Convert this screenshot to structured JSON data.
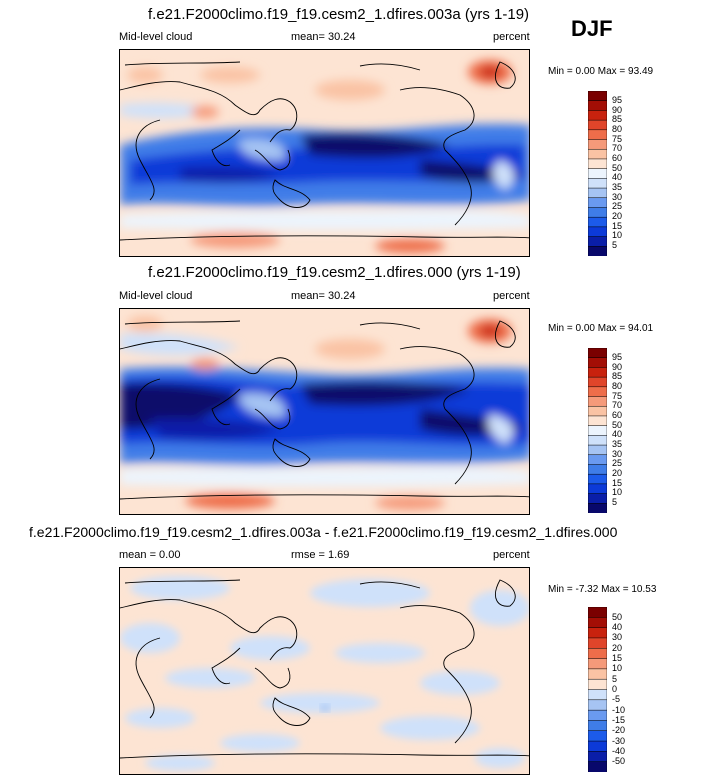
{
  "season": "DJF",
  "colors": {
    "full": [
      "#08086b",
      "#0a1ea8",
      "#0c3ad8",
      "#1c5bea",
      "#3f7de8",
      "#6a9af0",
      "#a6c4f3",
      "#cfe1fa",
      "#ecf4fd",
      "#fde4d3",
      "#fac3a4",
      "#f59a7a",
      "#ee6d4a",
      "#e0452a",
      "#c8220e",
      "#a30e05",
      "#7a0000"
    ],
    "diff": [
      "#08086b",
      "#0a1ea8",
      "#0c3ad8",
      "#1c5bea",
      "#3f7de8",
      "#6a9af0",
      "#a6c4f3",
      "#cfe1fa",
      "#fde4d3",
      "#fac3a4",
      "#f59a7a",
      "#ee6d4a",
      "#e0452a",
      "#c8220e",
      "#a30e05",
      "#7a0000"
    ]
  },
  "panels": [
    {
      "title": "f.e21.F2000climo.f19_f19.cesm2_1.dfires.003a (yrs 1-19)",
      "variable": "Mid-level cloud",
      "stat": "mean=  30.24",
      "units": "percent",
      "minmax": "Min =   0.00 Max =  93.49",
      "ticks": [
        "95",
        "90",
        "85",
        "80",
        "75",
        "70",
        "60",
        "50",
        "40",
        "35",
        "30",
        "25",
        "20",
        "15",
        "10",
        "5"
      ]
    },
    {
      "title": "f.e21.F2000climo.f19_f19.cesm2_1.dfires.000 (yrs 1-19)",
      "variable": "Mid-level cloud",
      "stat": "mean=  30.24",
      "units": "percent",
      "minmax": "Min =   0.00 Max =  94.01",
      "ticks": [
        "95",
        "90",
        "85",
        "80",
        "75",
        "70",
        "60",
        "50",
        "40",
        "35",
        "30",
        "25",
        "20",
        "15",
        "10",
        "5"
      ]
    },
    {
      "title": "f.e21.F2000climo.f19_f19.cesm2_1.dfires.003a - f.e21.F2000climo.f19_f19.cesm2_1.dfires.000",
      "stat_left": "mean =   0.00",
      "stat_mid": "rmse =   1.69",
      "units": "percent",
      "minmax": "Min =  -7.32 Max =  10.53",
      "ticks": [
        "50",
        "40",
        "30",
        "20",
        "15",
        "10",
        "5",
        "0",
        "-5",
        "-10",
        "-15",
        "-20",
        "-30",
        "-40",
        "-50"
      ]
    }
  ],
  "chart_data": [
    {
      "type": "heatmap",
      "title": "f.e21.F2000climo.f19_f19.cesm2_1.dfires.003a (yrs 1-19)",
      "variable": "Mid-level cloud",
      "units": "percent",
      "mean": 30.24,
      "min": 0.0,
      "max": 93.49,
      "levels": [
        5,
        10,
        15,
        20,
        25,
        30,
        35,
        40,
        50,
        60,
        70,
        75,
        80,
        85,
        90,
        95
      ]
    },
    {
      "type": "heatmap",
      "title": "f.e21.F2000climo.f19_f19.cesm2_1.dfires.000 (yrs 1-19)",
      "variable": "Mid-level cloud",
      "units": "percent",
      "mean": 30.24,
      "min": 0.0,
      "max": 94.01,
      "levels": [
        5,
        10,
        15,
        20,
        25,
        30,
        35,
        40,
        50,
        60,
        70,
        75,
        80,
        85,
        90,
        95
      ]
    },
    {
      "type": "heatmap",
      "title": "f.e21.F2000climo.f19_f19.cesm2_1.dfires.003a - f.e21.F2000climo.f19_f19.cesm2_1.dfires.000",
      "units": "percent",
      "mean": 0.0,
      "rmse": 1.69,
      "min": -7.32,
      "max": 10.53,
      "levels": [
        -50,
        -40,
        -30,
        -20,
        -15,
        -10,
        -5,
        0,
        5,
        10,
        15,
        20,
        30,
        40,
        50
      ]
    }
  ]
}
